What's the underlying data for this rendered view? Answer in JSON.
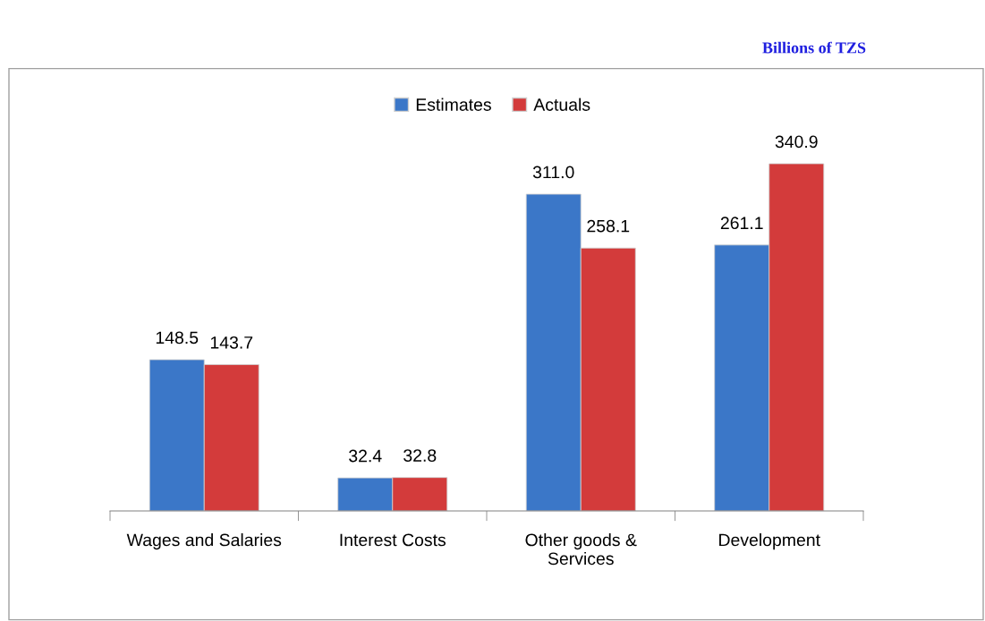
{
  "chart_data": {
    "type": "bar",
    "subtitle": "Billions of TZS",
    "categories": [
      "Wages and Salaries",
      "Interest Costs",
      "Other goods &\nServices",
      "Development"
    ],
    "series": [
      {
        "name": "Estimates",
        "color": "#3b77c8",
        "values": [
          148.5,
          32.4,
          311.0,
          261.1
        ],
        "value_labels": [
          "148.5",
          "32.4",
          "311.0",
          "261.1"
        ]
      },
      {
        "name": "Actuals",
        "color": "#d33b3b",
        "values": [
          143.7,
          32.8,
          258.1,
          340.9
        ],
        "value_labels": [
          "143.7",
          "32.8",
          "258.1",
          "340.9"
        ]
      }
    ],
    "legend": "top",
    "grid": false
  }
}
